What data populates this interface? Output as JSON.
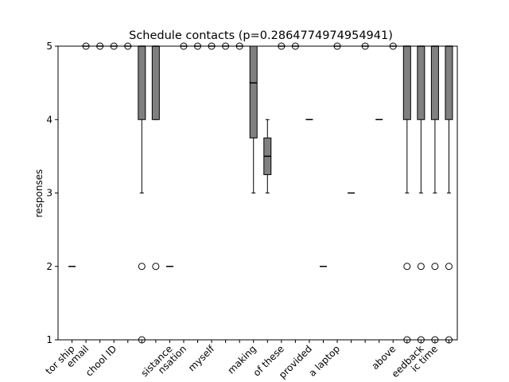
{
  "chart_data": {
    "type": "box",
    "title": "Schedule contacts (p=0.2864774974954941)",
    "ylabel": "responses",
    "ylim": [
      1,
      5
    ],
    "yticks": [
      1,
      2,
      3,
      4,
      5
    ],
    "box_color": "#808080",
    "categories": [
      "tor ship",
      "email",
      null,
      "chool ID",
      null,
      null,
      null,
      "sistance",
      "nsation",
      null,
      "myself",
      null,
      null,
      "making",
      null,
      "of these",
      null,
      "provided",
      null,
      "a laptop",
      null,
      null,
      null,
      "above",
      null,
      "eedback",
      "ic time",
      null
    ],
    "boxes": [
      {
        "q1": 2,
        "median": 2,
        "q3": 2,
        "whislo": 2,
        "whishi": 2,
        "fliers": []
      },
      {
        "q1": 5,
        "median": 5,
        "q3": 5,
        "whislo": 5,
        "whishi": 5,
        "fliers": [
          5
        ]
      },
      {
        "q1": 5,
        "median": 5,
        "q3": 5,
        "whislo": 5,
        "whishi": 5,
        "fliers": [
          5
        ]
      },
      {
        "q1": 5,
        "median": 5,
        "q3": 5,
        "whislo": 5,
        "whishi": 5,
        "fliers": [
          5
        ]
      },
      {
        "q1": 5,
        "median": 5,
        "q3": 5,
        "whislo": 5,
        "whishi": 5,
        "fliers": [
          5
        ]
      },
      {
        "q1": 4,
        "median": 5,
        "q3": 5,
        "whislo": 3,
        "whishi": 5,
        "fliers": [
          2,
          1
        ]
      },
      {
        "q1": 4,
        "median": 5,
        "q3": 5,
        "whislo": 4,
        "whishi": 5,
        "fliers": [
          2
        ]
      },
      {
        "q1": 2,
        "median": 2,
        "q3": 2,
        "whislo": 2,
        "whishi": 2,
        "fliers": []
      },
      {
        "q1": 5,
        "median": 5,
        "q3": 5,
        "whislo": 5,
        "whishi": 5,
        "fliers": [
          5
        ]
      },
      {
        "q1": 5,
        "median": 5,
        "q3": 5,
        "whislo": 5,
        "whishi": 5,
        "fliers": [
          5
        ]
      },
      {
        "q1": 5,
        "median": 5,
        "q3": 5,
        "whislo": 5,
        "whishi": 5,
        "fliers": [
          5
        ]
      },
      {
        "q1": 5,
        "median": 5,
        "q3": 5,
        "whislo": 5,
        "whishi": 5,
        "fliers": [
          5
        ]
      },
      {
        "q1": 5,
        "median": 5,
        "q3": 5,
        "whislo": 5,
        "whishi": 5,
        "fliers": [
          5
        ]
      },
      {
        "q1": 3.75,
        "median": 4.5,
        "q3": 5,
        "whislo": 3,
        "whishi": 5,
        "fliers": []
      },
      {
        "q1": 3.25,
        "median": 3.5,
        "q3": 3.75,
        "whislo": 3,
        "whishi": 4,
        "fliers": []
      },
      {
        "q1": 5,
        "median": 5,
        "q3": 5,
        "whislo": 5,
        "whishi": 5,
        "fliers": [
          5
        ]
      },
      {
        "q1": 5,
        "median": 5,
        "q3": 5,
        "whislo": 5,
        "whishi": 5,
        "fliers": [
          5
        ]
      },
      {
        "q1": 4,
        "median": 4,
        "q3": 4,
        "whislo": 4,
        "whishi": 4,
        "fliers": []
      },
      {
        "q1": 2,
        "median": 2,
        "q3": 2,
        "whislo": 2,
        "whishi": 2,
        "fliers": []
      },
      {
        "q1": 5,
        "median": 5,
        "q3": 5,
        "whislo": 5,
        "whishi": 5,
        "fliers": [
          5
        ]
      },
      {
        "q1": 3,
        "median": 3,
        "q3": 3,
        "whislo": 3,
        "whishi": 3,
        "fliers": []
      },
      {
        "q1": 5,
        "median": 5,
        "q3": 5,
        "whislo": 5,
        "whishi": 5,
        "fliers": [
          5
        ]
      },
      {
        "q1": 4,
        "median": 4,
        "q3": 4,
        "whislo": 4,
        "whishi": 4,
        "fliers": []
      },
      {
        "q1": 5,
        "median": 5,
        "q3": 5,
        "whislo": 5,
        "whishi": 5,
        "fliers": [
          5
        ]
      },
      {
        "q1": 4,
        "median": 5,
        "q3": 5,
        "whislo": 3,
        "whishi": 5,
        "fliers": [
          2,
          1
        ]
      },
      {
        "q1": 4,
        "median": 5,
        "q3": 5,
        "whislo": 3,
        "whishi": 5,
        "fliers": [
          2,
          1
        ]
      },
      {
        "q1": 4,
        "median": 5,
        "q3": 5,
        "whislo": 3,
        "whishi": 5,
        "fliers": [
          2,
          1
        ]
      },
      {
        "q1": 4,
        "median": 5,
        "q3": 5,
        "whislo": 3,
        "whishi": 5,
        "fliers": [
          2,
          1
        ]
      }
    ]
  }
}
